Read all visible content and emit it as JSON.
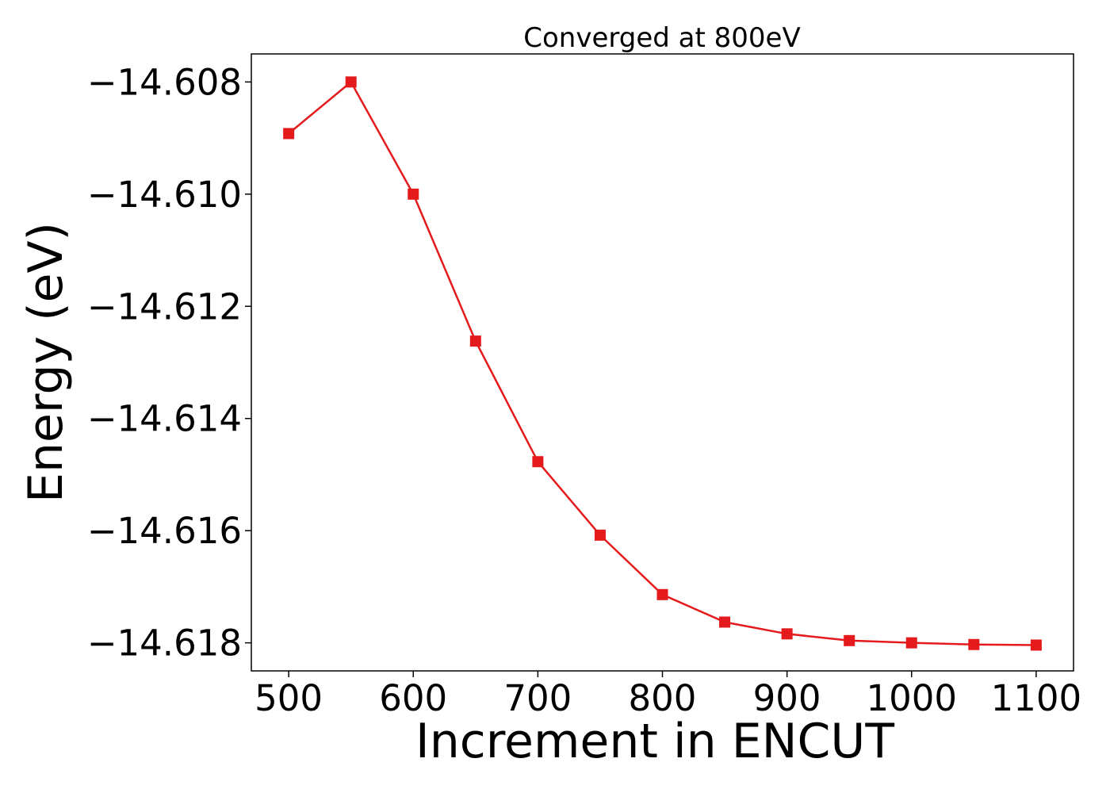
{
  "chart_data": {
    "type": "line",
    "title": "Converged at 800eV",
    "xlabel": "Increment in ENCUT",
    "ylabel": "Energy (eV)",
    "xlim": [
      470,
      1130
    ],
    "ylim": [
      -14.6185,
      -14.6075
    ],
    "xticks": [
      500,
      600,
      700,
      800,
      900,
      1000,
      1100
    ],
    "xtick_labels": [
      "500",
      "600",
      "700",
      "800",
      "900",
      "1000",
      "1100"
    ],
    "yticks": [
      -14.608,
      -14.61,
      -14.612,
      -14.614,
      -14.616,
      -14.618
    ],
    "ytick_labels": [
      "−14.608",
      "−14.610",
      "−14.612",
      "−14.614",
      "−14.616",
      "−14.618"
    ],
    "grid": false,
    "series": [
      {
        "color": "#e41a1c",
        "marker": "square",
        "x": [
          500,
          550,
          600,
          650,
          700,
          750,
          800,
          850,
          900,
          950,
          1000,
          1050,
          1100
        ],
        "y": [
          -14.60892,
          -14.608,
          -14.61,
          -14.61262,
          -14.61477,
          -14.61608,
          -14.61714,
          -14.61763,
          -14.61784,
          -14.61796,
          -14.618,
          -14.61803,
          -14.61804
        ]
      }
    ]
  }
}
